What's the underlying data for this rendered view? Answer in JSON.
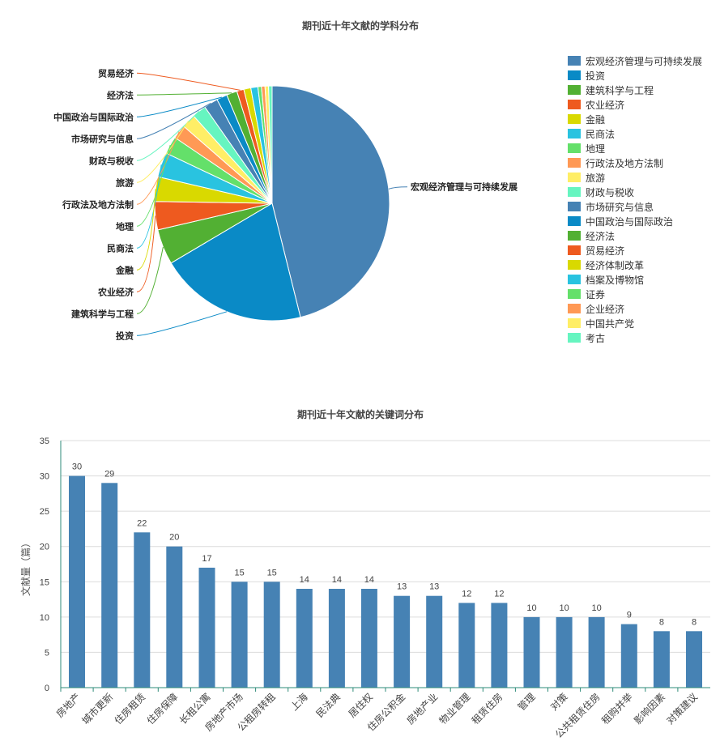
{
  "chart_data": [
    {
      "type": "pie",
      "title": "期刊近十年文献的学科分布",
      "categories": [
        "宏观经济管理与可持续发展",
        "投资",
        "建筑科学与工程",
        "农业经济",
        "金融",
        "民商法",
        "地理",
        "行政法及地方法制",
        "旅游",
        "财政与税收",
        "市场研究与信息",
        "中国政治与国际政治",
        "经济法",
        "贸易经济",
        "经济体制改革",
        "档案及博物馆",
        "证券",
        "企业经济",
        "中国共产党",
        "考古"
      ],
      "values": [
        95,
        42,
        10,
        8,
        7,
        7,
        5,
        4,
        4,
        4,
        4,
        3,
        3,
        2,
        2,
        2,
        1,
        1,
        1,
        1
      ],
      "labeled": [
        "宏观经济管理与可持续发展",
        "投资",
        "建筑科学与工程",
        "农业经济",
        "金融",
        "民商法",
        "地理",
        "行政法及地方法制",
        "旅游",
        "财政与税收",
        "市场研究与信息",
        "中国政治与国际政治",
        "经济法",
        "贸易经济"
      ],
      "colors": [
        "#4682b4",
        "#0a8ac6",
        "#52b033",
        "#ee5a1f",
        "#d9d900",
        "#29c3e0",
        "#64e06a",
        "#ff9955",
        "#ffee66",
        "#66f5c0",
        "#4682b4",
        "#0a8ac6",
        "#52b033",
        "#ee5a1f",
        "#d9d900",
        "#29c3e0",
        "#64e06a",
        "#ff9955",
        "#ffee66",
        "#66f5c0"
      ],
      "legend": "right"
    },
    {
      "type": "bar",
      "title": "期刊近十年文献的关键词分布",
      "categories": [
        "房地产",
        "城市更新",
        "住房租赁",
        "住房保障",
        "长租公寓",
        "房地产市场",
        "公租房转租",
        "上海",
        "民法典",
        "居住权",
        "住房公积金",
        "房地产业",
        "物业管理",
        "租赁住房",
        "管理",
        "对策",
        "公共租赁住房",
        "租购并举",
        "影响因素",
        "对策建议"
      ],
      "values": [
        30,
        29,
        22,
        20,
        17,
        15,
        15,
        14,
        14,
        14,
        13,
        13,
        12,
        12,
        10,
        10,
        10,
        9,
        8,
        8
      ],
      "ylabel": "文献量（篇）",
      "ylim": [
        0,
        35
      ],
      "yticks": [
        0,
        5,
        10,
        15,
        20,
        25,
        30,
        35
      ],
      "grid": true,
      "color": "#4682b4"
    }
  ]
}
